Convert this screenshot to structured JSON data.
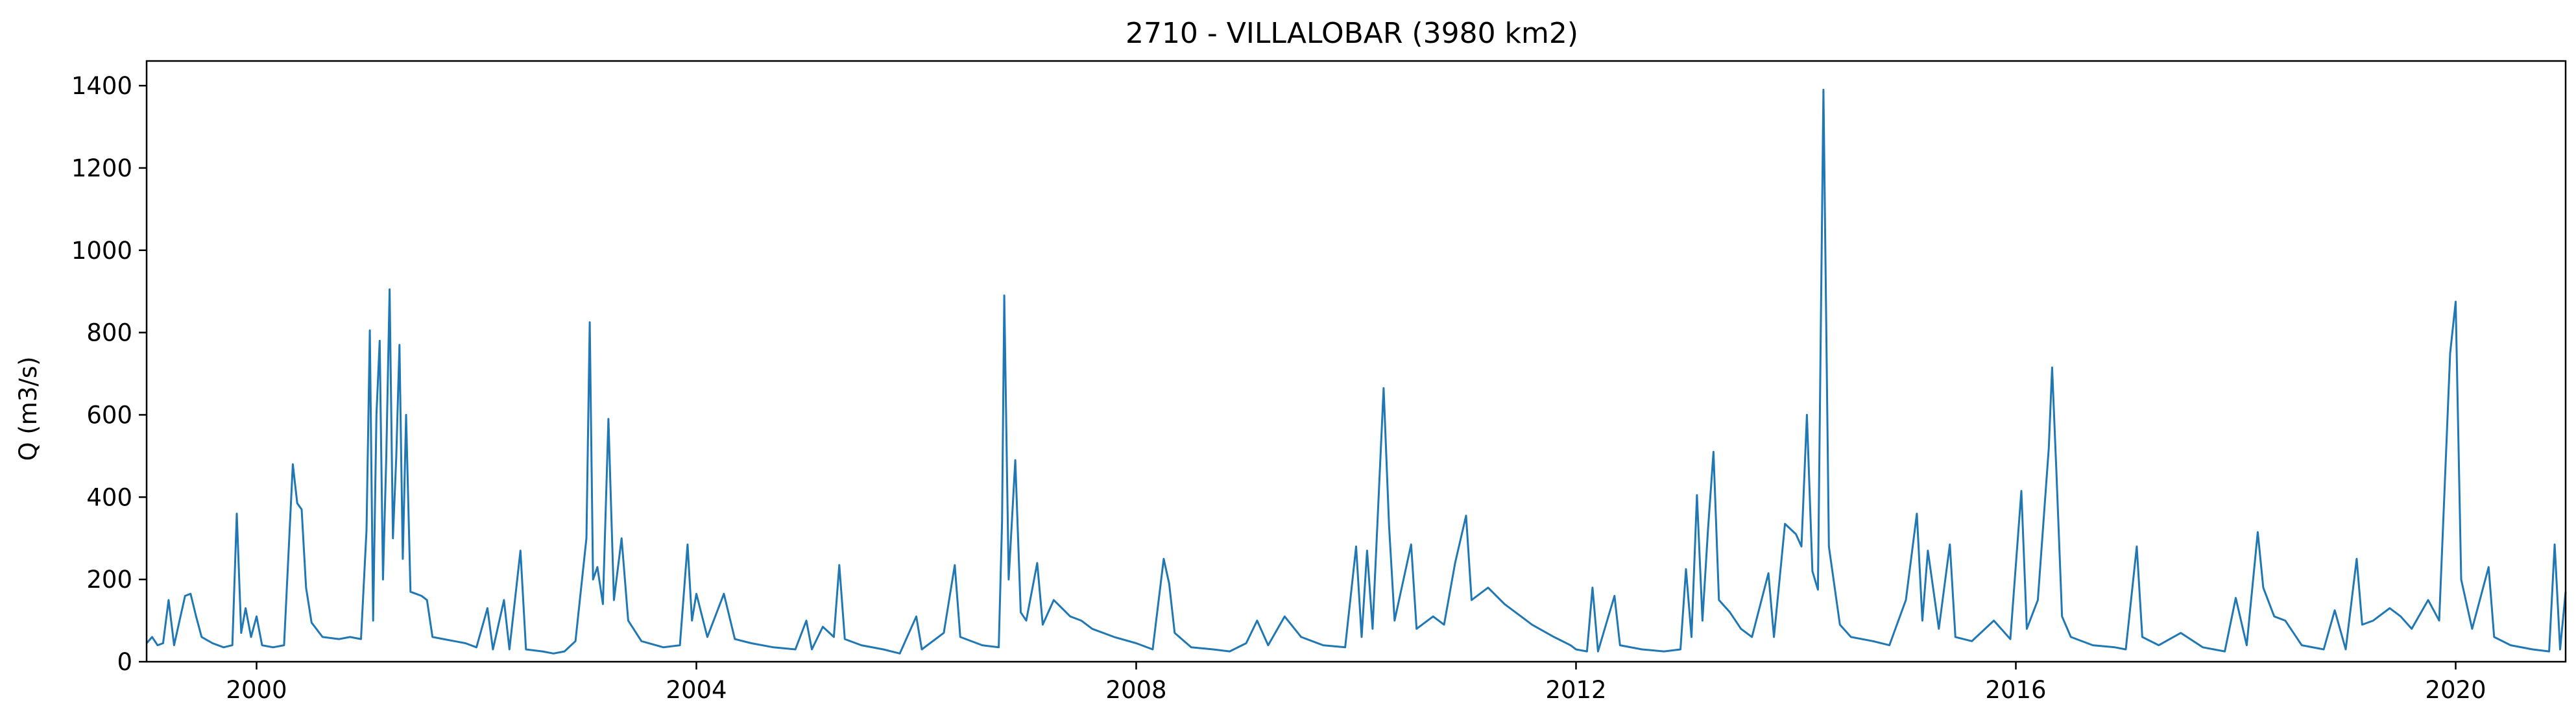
{
  "chart_data": {
    "type": "line",
    "title": "2710 - VILLALOBAR (3980 km2)",
    "xlabel": "",
    "ylabel": "Q (m3/s)",
    "xlim": [
      1999.0,
      2021.0
    ],
    "ylim": [
      0,
      1460
    ],
    "x_ticks": [
      2000,
      2004,
      2008,
      2012,
      2016,
      2020
    ],
    "x_tick_labels": [
      "2000",
      "2004",
      "2008",
      "2012",
      "2016",
      "2020"
    ],
    "y_ticks": [
      0,
      200,
      400,
      600,
      800,
      1000,
      1200,
      1400
    ],
    "y_tick_labels": [
      "0",
      "200",
      "400",
      "600",
      "800",
      "1000",
      "1200",
      "1400"
    ],
    "grid": false,
    "line_color": "#1f77b4",
    "series": [
      {
        "name": "",
        "points": [
          [
            1999.0,
            45
          ],
          [
            1999.05,
            60
          ],
          [
            1999.1,
            40
          ],
          [
            1999.15,
            45
          ],
          [
            1999.2,
            150
          ],
          [
            1999.25,
            40
          ],
          [
            1999.3,
            100
          ],
          [
            1999.35,
            160
          ],
          [
            1999.4,
            165
          ],
          [
            1999.45,
            110
          ],
          [
            1999.5,
            60
          ],
          [
            1999.6,
            45
          ],
          [
            1999.7,
            35
          ],
          [
            1999.78,
            40
          ],
          [
            1999.82,
            360
          ],
          [
            1999.86,
            70
          ],
          [
            1999.9,
            130
          ],
          [
            1999.95,
            60
          ],
          [
            2000.0,
            110
          ],
          [
            2000.05,
            40
          ],
          [
            2000.15,
            35
          ],
          [
            2000.25,
            40
          ],
          [
            2000.33,
            480
          ],
          [
            2000.37,
            385
          ],
          [
            2000.41,
            370
          ],
          [
            2000.45,
            180
          ],
          [
            2000.5,
            95
          ],
          [
            2000.6,
            60
          ],
          [
            2000.75,
            55
          ],
          [
            2000.85,
            60
          ],
          [
            2000.95,
            55
          ],
          [
            2001.0,
            320
          ],
          [
            2001.03,
            805
          ],
          [
            2001.06,
            100
          ],
          [
            2001.09,
            600
          ],
          [
            2001.12,
            780
          ],
          [
            2001.15,
            200
          ],
          [
            2001.18,
            500
          ],
          [
            2001.21,
            905
          ],
          [
            2001.24,
            300
          ],
          [
            2001.27,
            495
          ],
          [
            2001.3,
            770
          ],
          [
            2001.33,
            250
          ],
          [
            2001.36,
            600
          ],
          [
            2001.4,
            170
          ],
          [
            2001.45,
            165
          ],
          [
            2001.5,
            160
          ],
          [
            2001.55,
            150
          ],
          [
            2001.6,
            60
          ],
          [
            2001.7,
            55
          ],
          [
            2001.8,
            50
          ],
          [
            2001.9,
            45
          ],
          [
            2002.0,
            35
          ],
          [
            2002.1,
            130
          ],
          [
            2002.15,
            30
          ],
          [
            2002.25,
            150
          ],
          [
            2002.3,
            30
          ],
          [
            2002.4,
            270
          ],
          [
            2002.45,
            30
          ],
          [
            2002.6,
            25
          ],
          [
            2002.7,
            20
          ],
          [
            2002.8,
            25
          ],
          [
            2002.9,
            50
          ],
          [
            2003.0,
            300
          ],
          [
            2003.03,
            825
          ],
          [
            2003.06,
            200
          ],
          [
            2003.1,
            230
          ],
          [
            2003.15,
            140
          ],
          [
            2003.2,
            590
          ],
          [
            2003.25,
            150
          ],
          [
            2003.32,
            300
          ],
          [
            2003.38,
            100
          ],
          [
            2003.5,
            50
          ],
          [
            2003.7,
            35
          ],
          [
            2003.85,
            40
          ],
          [
            2003.92,
            285
          ],
          [
            2003.96,
            100
          ],
          [
            2004.0,
            165
          ],
          [
            2004.1,
            60
          ],
          [
            2004.25,
            165
          ],
          [
            2004.35,
            55
          ],
          [
            2004.5,
            45
          ],
          [
            2004.7,
            35
          ],
          [
            2004.9,
            30
          ],
          [
            2005.0,
            100
          ],
          [
            2005.05,
            30
          ],
          [
            2005.15,
            85
          ],
          [
            2005.25,
            60
          ],
          [
            2005.3,
            235
          ],
          [
            2005.35,
            55
          ],
          [
            2005.5,
            40
          ],
          [
            2005.7,
            30
          ],
          [
            2005.85,
            20
          ],
          [
            2006.0,
            110
          ],
          [
            2006.05,
            30
          ],
          [
            2006.25,
            70
          ],
          [
            2006.35,
            235
          ],
          [
            2006.4,
            60
          ],
          [
            2006.6,
            40
          ],
          [
            2006.75,
            35
          ],
          [
            2006.78,
            340
          ],
          [
            2006.8,
            890
          ],
          [
            2006.84,
            200
          ],
          [
            2006.9,
            490
          ],
          [
            2006.95,
            120
          ],
          [
            2007.0,
            100
          ],
          [
            2007.1,
            240
          ],
          [
            2007.15,
            90
          ],
          [
            2007.25,
            150
          ],
          [
            2007.4,
            110
          ],
          [
            2007.5,
            100
          ],
          [
            2007.6,
            80
          ],
          [
            2007.8,
            60
          ],
          [
            2008.0,
            45
          ],
          [
            2008.15,
            30
          ],
          [
            2008.25,
            250
          ],
          [
            2008.3,
            190
          ],
          [
            2008.35,
            70
          ],
          [
            2008.5,
            35
          ],
          [
            2008.7,
            30
          ],
          [
            2008.85,
            25
          ],
          [
            2009.0,
            45
          ],
          [
            2009.1,
            100
          ],
          [
            2009.2,
            40
          ],
          [
            2009.35,
            110
          ],
          [
            2009.5,
            60
          ],
          [
            2009.7,
            40
          ],
          [
            2009.9,
            35
          ],
          [
            2010.0,
            280
          ],
          [
            2010.05,
            60
          ],
          [
            2010.1,
            270
          ],
          [
            2010.15,
            80
          ],
          [
            2010.25,
            665
          ],
          [
            2010.3,
            330
          ],
          [
            2010.35,
            100
          ],
          [
            2010.5,
            285
          ],
          [
            2010.55,
            80
          ],
          [
            2010.7,
            110
          ],
          [
            2010.8,
            90
          ],
          [
            2010.9,
            240
          ],
          [
            2011.0,
            355
          ],
          [
            2011.05,
            150
          ],
          [
            2011.2,
            180
          ],
          [
            2011.35,
            140
          ],
          [
            2011.5,
            110
          ],
          [
            2011.6,
            90
          ],
          [
            2011.8,
            60
          ],
          [
            2011.95,
            40
          ],
          [
            2012.0,
            30
          ],
          [
            2012.1,
            25
          ],
          [
            2012.15,
            180
          ],
          [
            2012.2,
            25
          ],
          [
            2012.35,
            160
          ],
          [
            2012.4,
            40
          ],
          [
            2012.6,
            30
          ],
          [
            2012.8,
            25
          ],
          [
            2012.95,
            30
          ],
          [
            2013.0,
            225
          ],
          [
            2013.05,
            60
          ],
          [
            2013.1,
            405
          ],
          [
            2013.15,
            100
          ],
          [
            2013.2,
            320
          ],
          [
            2013.25,
            510
          ],
          [
            2013.3,
            150
          ],
          [
            2013.4,
            120
          ],
          [
            2013.5,
            80
          ],
          [
            2013.6,
            60
          ],
          [
            2013.75,
            215
          ],
          [
            2013.8,
            60
          ],
          [
            2013.9,
            335
          ],
          [
            2014.0,
            310
          ],
          [
            2014.05,
            280
          ],
          [
            2014.1,
            600
          ],
          [
            2014.15,
            220
          ],
          [
            2014.2,
            175
          ],
          [
            2014.25,
            1390
          ],
          [
            2014.3,
            280
          ],
          [
            2014.4,
            90
          ],
          [
            2014.5,
            60
          ],
          [
            2014.7,
            50
          ],
          [
            2014.85,
            40
          ],
          [
            2015.0,
            150
          ],
          [
            2015.1,
            360
          ],
          [
            2015.15,
            100
          ],
          [
            2015.2,
            270
          ],
          [
            2015.3,
            80
          ],
          [
            2015.4,
            285
          ],
          [
            2015.45,
            60
          ],
          [
            2015.6,
            50
          ],
          [
            2015.8,
            100
          ],
          [
            2015.95,
            55
          ],
          [
            2016.05,
            415
          ],
          [
            2016.1,
            80
          ],
          [
            2016.2,
            150
          ],
          [
            2016.3,
            520
          ],
          [
            2016.33,
            715
          ],
          [
            2016.37,
            455
          ],
          [
            2016.42,
            110
          ],
          [
            2016.5,
            60
          ],
          [
            2016.7,
            40
          ],
          [
            2016.9,
            35
          ],
          [
            2017.0,
            30
          ],
          [
            2017.1,
            280
          ],
          [
            2017.15,
            60
          ],
          [
            2017.3,
            40
          ],
          [
            2017.5,
            70
          ],
          [
            2017.7,
            35
          ],
          [
            2017.9,
            25
          ],
          [
            2018.0,
            155
          ],
          [
            2018.1,
            40
          ],
          [
            2018.2,
            315
          ],
          [
            2018.25,
            180
          ],
          [
            2018.35,
            110
          ],
          [
            2018.45,
            100
          ],
          [
            2018.6,
            40
          ],
          [
            2018.8,
            30
          ],
          [
            2018.9,
            125
          ],
          [
            2019.0,
            30
          ],
          [
            2019.1,
            250
          ],
          [
            2019.15,
            90
          ],
          [
            2019.25,
            100
          ],
          [
            2019.4,
            130
          ],
          [
            2019.5,
            110
          ],
          [
            2019.6,
            80
          ],
          [
            2019.75,
            150
          ],
          [
            2019.85,
            100
          ],
          [
            2019.95,
            750
          ],
          [
            2020.0,
            875
          ],
          [
            2020.05,
            200
          ],
          [
            2020.15,
            80
          ],
          [
            2020.3,
            230
          ],
          [
            2020.35,
            60
          ],
          [
            2020.5,
            40
          ],
          [
            2020.7,
            30
          ],
          [
            2020.85,
            25
          ],
          [
            2020.9,
            285
          ],
          [
            2020.95,
            30
          ],
          [
            2021.0,
            170
          ]
        ]
      }
    ]
  }
}
